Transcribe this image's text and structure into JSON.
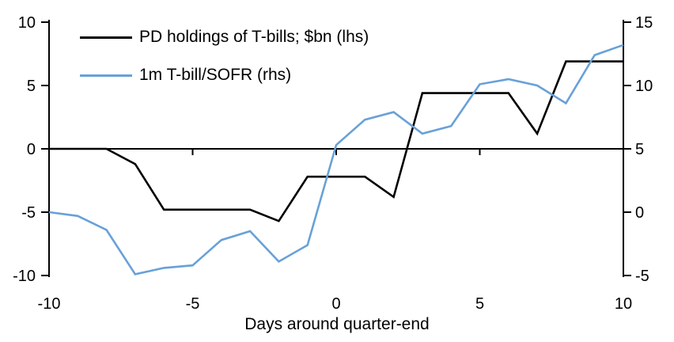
{
  "chart_data": {
    "type": "line",
    "title": "",
    "xlabel": "Days around quarter-end",
    "grid": false,
    "legend_position": "top-left",
    "background_color": "#ffffff",
    "axis_color": "#000000",
    "x": [
      -10,
      -9,
      -8,
      -7,
      -6,
      -5,
      -4,
      -3,
      -2,
      -1,
      0,
      1,
      2,
      3,
      4,
      5,
      6,
      7,
      8,
      9,
      10
    ],
    "x_ticks": [
      -10,
      -5,
      0,
      5,
      10
    ],
    "left_axis": {
      "min": -10,
      "max": 10,
      "ticks": [
        10,
        5,
        0,
        -5,
        -10
      ]
    },
    "right_axis": {
      "min": -5,
      "max": 15,
      "ticks": [
        15,
        10,
        5,
        0,
        -5
      ]
    },
    "series": [
      {
        "name": "PD holdings of T-bills; $bn (lhs)",
        "axis": "left",
        "color": "#000000",
        "values": [
          0,
          0,
          0,
          -1.2,
          -4.8,
          -4.8,
          -4.8,
          -4.8,
          -5.7,
          -2.2,
          -2.2,
          -2.2,
          -3.8,
          4.4,
          4.4,
          4.4,
          4.4,
          1.2,
          6.9,
          6.9,
          6.9
        ]
      },
      {
        "name": "1m T-bill/SOFR (rhs)",
        "axis": "right",
        "color": "#68A1D8",
        "values": [
          0,
          -0.3,
          -1.4,
          -4.9,
          -4.4,
          -4.2,
          -2.2,
          -1.5,
          -3.9,
          -2.6,
          5.3,
          7.3,
          7.9,
          6.2,
          6.8,
          10.1,
          10.5,
          10.0,
          8.6,
          12.4,
          13.2
        ]
      }
    ]
  }
}
